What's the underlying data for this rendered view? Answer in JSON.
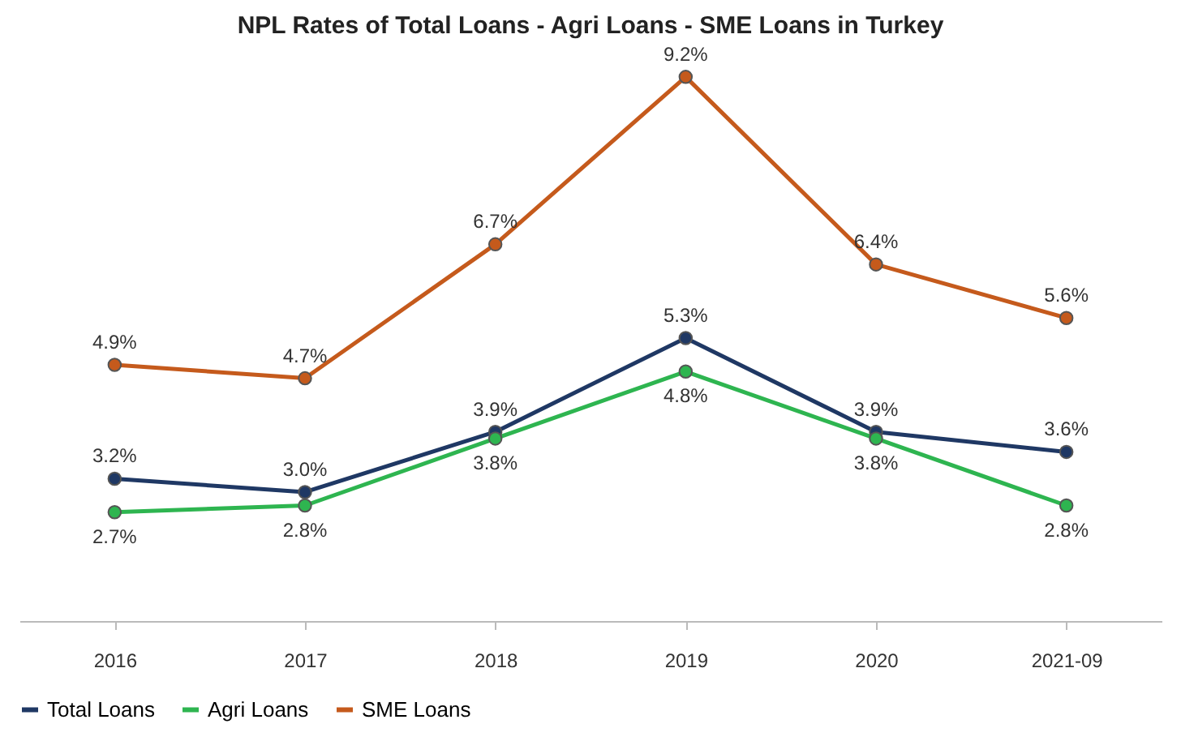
{
  "chart_data": {
    "type": "line",
    "title": "NPL Rates of Total Loans - Agri Loans - SME Loans in Turkey",
    "categories": [
      "2016",
      "2017",
      "2018",
      "2019",
      "2020",
      "2021-09"
    ],
    "series": [
      {
        "name": "Total Loans",
        "color": "#1f3864",
        "values": [
          3.2,
          3.0,
          3.9,
          5.3,
          3.9,
          3.6
        ],
        "value_labels": [
          "3.2%",
          "3.0%",
          "3.9%",
          "5.3%",
          "3.9%",
          "3.6%"
        ]
      },
      {
        "name": "Agri Loans",
        "color": "#2eb550",
        "values": [
          2.7,
          2.8,
          3.8,
          4.8,
          3.8,
          2.8
        ],
        "value_labels": [
          "2.7%",
          "2.8%",
          "3.8%",
          "4.8%",
          "3.8%",
          "2.8%"
        ]
      },
      {
        "name": "SME Loans",
        "color": "#c55a1c",
        "values": [
          4.9,
          4.7,
          6.7,
          9.2,
          6.4,
          5.6
        ],
        "value_labels": [
          "4.9%",
          "4.7%",
          "6.7%",
          "9.2%",
          "6.4%",
          "5.6%"
        ]
      }
    ],
    "marker": "circle",
    "line_style": "solid",
    "grid": false,
    "legend": "bottom",
    "tick_labels": "x"
  }
}
